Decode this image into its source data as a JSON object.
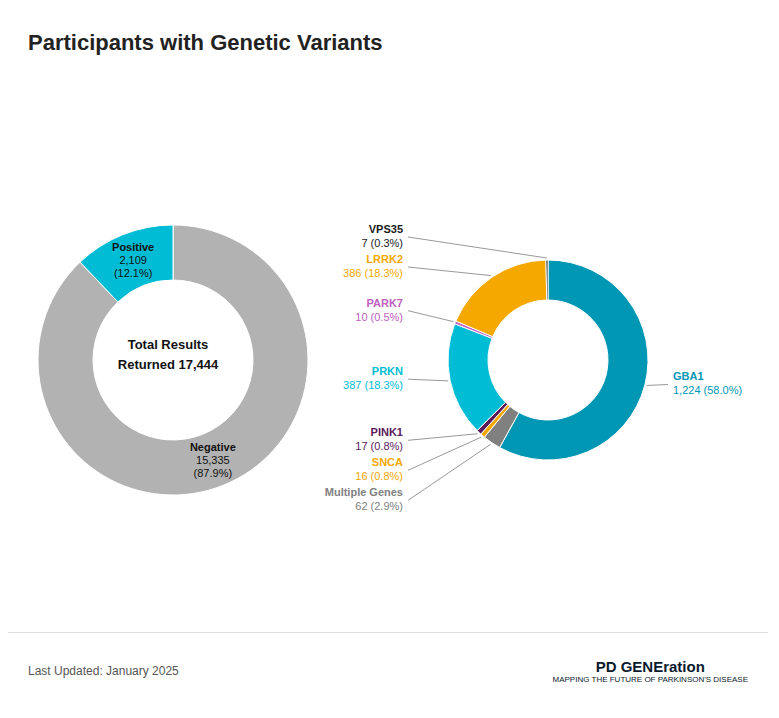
{
  "chart_data": [
    {
      "type": "pie",
      "title": "Participants with Genetic Variants",
      "categories": [
        "Negative",
        "Positive"
      ],
      "values": [
        15335,
        2109
      ],
      "value_labels": [
        "15,335 (87.9%)",
        "2,109 (12.1%)"
      ],
      "colors": [
        "#b2b2b2",
        "#00bcd4"
      ],
      "annotations": [
        "Total Results",
        "Returned 17,444",
        "Last Updated: January 2025",
        "PD GENEration",
        "MAPPING THE FUTURE OF PARKINSON'S DISEASE"
      ]
    },
    {
      "type": "pie",
      "categories": [
        "GBA1",
        "Multiple Genes",
        "SNCA",
        "PINK1",
        "PRKN",
        "PARK7",
        "LRRK2",
        "VPS35"
      ],
      "values": [
        1224,
        62,
        16,
        17,
        387,
        10,
        386,
        7
      ],
      "value_labels": [
        "1,224 (58.0%)",
        "62 (2.9%)",
        "16 (0.8%)",
        "17 (0.8%)",
        "387 (18.3%)",
        "10 (0.5%)",
        "386 (18.3%)",
        "7 (0.3%)"
      ],
      "colors": [
        "#0097b5",
        "#808080",
        "#f5a800",
        "#5c1a5c",
        "#00bcd4",
        "#c060c0",
        "#f5a800",
        "#1a1a1a"
      ]
    }
  ]
}
